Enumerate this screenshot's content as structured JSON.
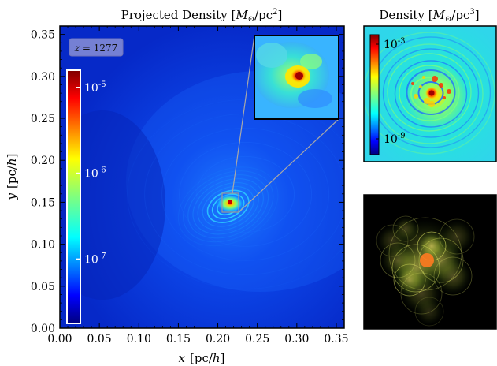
{
  "main_panel": {
    "title": "Projected Density [M⊙/pc²]",
    "title_parts": {
      "base": "Projected Density [",
      "m": "M",
      "sub": "⊙",
      "unit": "/pc",
      "sup": "2",
      "close": "]"
    },
    "xlabel": "x  [pc/h]",
    "xlabel_parts": {
      "var": "x",
      "unit": "[pc/",
      "h": "h",
      "close": "]"
    },
    "ylabel": "y  [pc/h]",
    "ylabel_parts": {
      "var": "y",
      "unit": "[pc/",
      "h": "h",
      "close": "]"
    },
    "redshift_label": "z = 1277",
    "redshift_parts": {
      "var": "z",
      "eq": " = ",
      "value": "1277"
    },
    "colorbar_ticks": [
      {
        "label_base": "10",
        "label_exp": "-5",
        "value": 1e-05
      },
      {
        "label_base": "10",
        "label_exp": "-6",
        "value": 1e-06
      },
      {
        "label_base": "10",
        "label_exp": "-7",
        "value": 1e-07
      }
    ],
    "colorbar_range_log10": [
      -7.75,
      -4.8
    ],
    "colorbar_colormap": "jet"
  },
  "right_top_panel": {
    "title": "Density [M⊙/pc³]",
    "title_parts": {
      "base": "Density [",
      "m": "M",
      "sub": "⊙",
      "unit": "/pc",
      "sup": "3",
      "close": "]"
    },
    "colorbar_ticks": [
      {
        "label_base": "10",
        "label_exp": "-3",
        "value": 0.001
      },
      {
        "label_base": "10",
        "label_exp": "-9",
        "value": 1e-09
      }
    ],
    "colorbar_range_log10": [
      -10,
      -2.4
    ],
    "colorbar_colormap": "jet"
  },
  "right_bottom_panel": {
    "kind": "volume-render",
    "background": "#000000"
  },
  "chart_data": {
    "type": "heatmap",
    "title": "Projected Density [M⊙/pc²]",
    "xlabel": "x  [pc/h]",
    "ylabel": "y  [pc/h]",
    "xlim": [
      0.0,
      0.36
    ],
    "ylim": [
      0.0,
      0.36
    ],
    "x_ticks": [
      "0.00",
      "0.05",
      "0.10",
      "0.15",
      "0.20",
      "0.25",
      "0.30",
      "0.35"
    ],
    "y_ticks": [
      "0.00",
      "0.05",
      "0.10",
      "0.15",
      "0.20",
      "0.25",
      "0.30",
      "0.35"
    ],
    "x_tick_values": [
      0.0,
      0.05,
      0.1,
      0.15,
      0.2,
      0.25,
      0.3,
      0.35
    ],
    "y_tick_values": [
      0.0,
      0.05,
      0.1,
      0.15,
      0.2,
      0.25,
      0.3,
      0.35
    ],
    "peak": {
      "x": 0.215,
      "y": 0.15
    },
    "zoom_box": {
      "x_range": [
        0.205,
        0.226
      ],
      "y_range": [
        0.14,
        0.162
      ]
    },
    "inset": {
      "x_range": [
        0.248,
        0.352
      ],
      "y_range": [
        0.25,
        0.35
      ]
    },
    "colorbar": {
      "scale": "log",
      "colormap": "jet",
      "ticks": [
        "10^-5",
        "10^-6",
        "10^-7"
      ]
    },
    "colors": {
      "background_field": "#0a2fd8",
      "peak": "#c80000",
      "frame": "#000000"
    }
  }
}
